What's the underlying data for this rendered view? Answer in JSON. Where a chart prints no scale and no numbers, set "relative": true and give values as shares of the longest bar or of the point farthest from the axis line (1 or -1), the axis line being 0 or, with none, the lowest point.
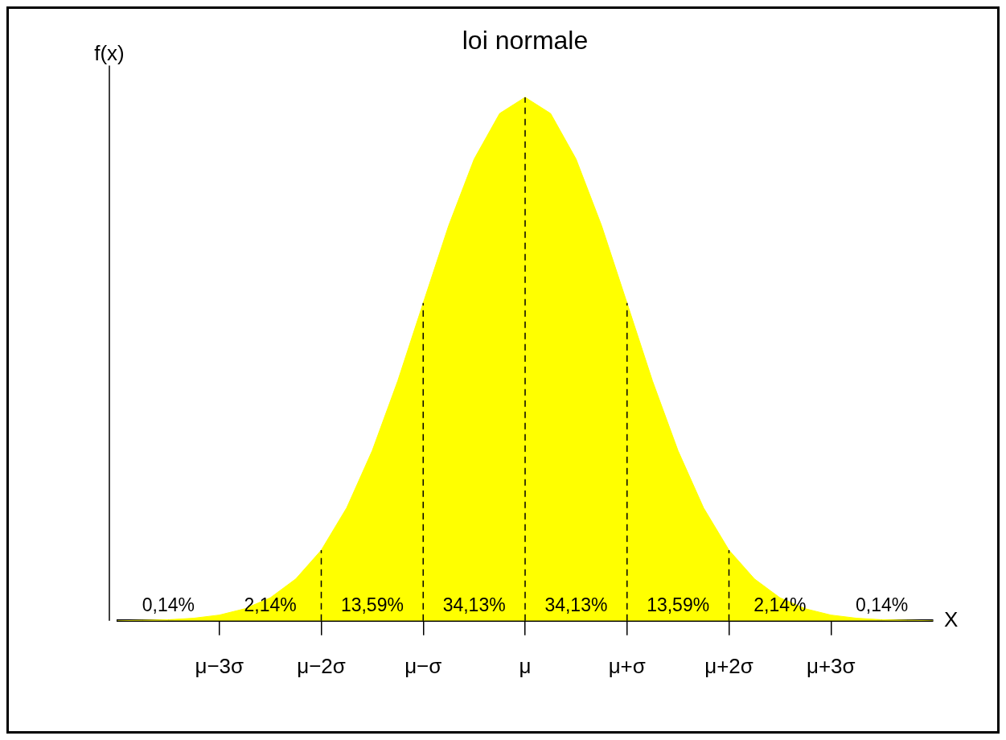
{
  "chart_data": {
    "type": "area",
    "title": "loi normale",
    "xlabel": "X",
    "ylabel": "f(x)",
    "relative": true,
    "color": "#ffff00",
    "categories": [
      null,
      null,
      null,
      null,
      "μ−3σ",
      null,
      null,
      null,
      "μ−2σ",
      null,
      null,
      null,
      "μ−σ",
      null,
      null,
      null,
      "μ",
      null,
      null,
      null,
      "μ+σ",
      null,
      null,
      null,
      "μ+2σ",
      null,
      null,
      null,
      "μ+3σ",
      null,
      null,
      null,
      null
    ],
    "values": [
      0,
      0.001,
      0.002,
      0.005,
      0.011,
      0.023,
      0.044,
      0.08,
      0.135,
      0.216,
      0.325,
      0.458,
      0.607,
      0.755,
      0.882,
      0.969,
      1,
      0.969,
      0.882,
      0.755,
      0.607,
      0.458,
      0.325,
      0.216,
      0.135,
      0.08,
      0.044,
      0.023,
      0.011,
      0.005,
      0.002,
      0.001,
      0
    ],
    "ref_lines": [
      {
        "axis": "x",
        "value": "μ−2σ",
        "line_style": "dashed"
      },
      {
        "axis": "x",
        "value": "μ−σ",
        "line_style": "dashed"
      },
      {
        "axis": "x",
        "value": "μ",
        "line_style": "dashed"
      },
      {
        "axis": "x",
        "value": "μ+σ",
        "line_style": "dashed"
      },
      {
        "axis": "x",
        "value": "μ+2σ",
        "line_style": "dashed"
      }
    ],
    "annotations": [
      "0,14%",
      "2,14%",
      "13,59%",
      "34,13%",
      "34,13%",
      "13,59%",
      "2,14%",
      "0,14%"
    ]
  }
}
